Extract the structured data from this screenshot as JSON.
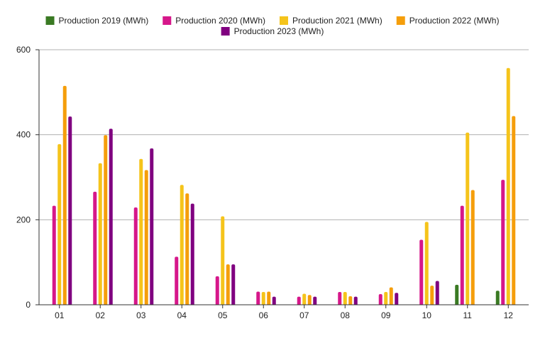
{
  "chart_data": {
    "type": "bar",
    "title": "",
    "xlabel": "",
    "ylabel": "",
    "categories": [
      "01",
      "02",
      "03",
      "04",
      "05",
      "06",
      "07",
      "08",
      "09",
      "10",
      "11",
      "12"
    ],
    "ylim": [
      0,
      600
    ],
    "yticks": [
      0,
      200,
      400,
      600
    ],
    "grid": true,
    "legend_position": "top-center",
    "series": [
      {
        "name": "Production 2019 (MWh)",
        "color": "#3a7a23",
        "values": [
          0,
          0,
          0,
          0,
          0,
          0,
          0,
          0,
          0,
          0,
          47,
          33
        ]
      },
      {
        "name": "Production 2020 (MWh)",
        "color": "#d6178a",
        "values": [
          233,
          266,
          229,
          113,
          67,
          31,
          19,
          30,
          25,
          153,
          233,
          294
        ]
      },
      {
        "name": "Production 2021 (MWh)",
        "color": "#f5c41b",
        "values": [
          378,
          333,
          343,
          282,
          208,
          30,
          26,
          30,
          30,
          195,
          405,
          557
        ]
      },
      {
        "name": "Production 2022 (MWh)",
        "color": "#f59e0b",
        "values": [
          515,
          399,
          317,
          262,
          95,
          31,
          23,
          20,
          41,
          45,
          270,
          444
        ]
      },
      {
        "name": "Production 2023 (MWh)",
        "color": "#800080",
        "values": [
          443,
          414,
          368,
          238,
          95,
          19,
          19,
          19,
          28,
          56,
          0,
          0
        ]
      }
    ]
  }
}
